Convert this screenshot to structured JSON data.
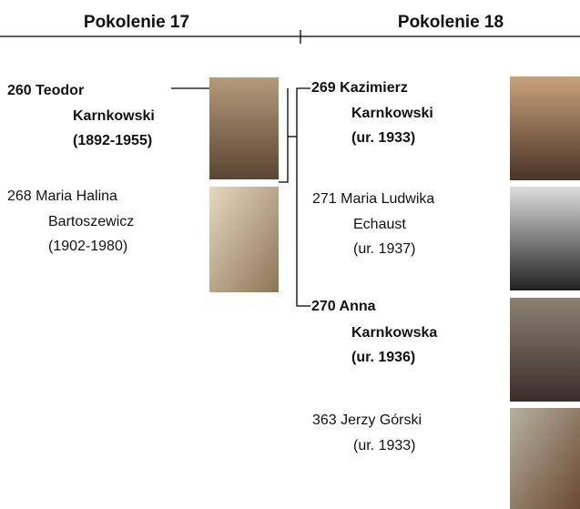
{
  "generations": [
    {
      "title": "Pokolenie 17",
      "persons": [
        {
          "lines": [
            "260 Teodor",
            "Karnkowski",
            "(1892-1955)"
          ]
        },
        {
          "lines": [
            "268 Maria Halina",
            "Bartoszewicz",
            "(1902-1980)"
          ]
        }
      ]
    },
    {
      "title": "Pokolenie 18",
      "persons": [
        {
          "lines": [
            "269 Kazimierz",
            "Karnkowski",
            "(ur. 1933)"
          ]
        },
        {
          "lines": [
            "271 Maria Ludwika",
            "Echaust",
            "(ur. 1937)"
          ]
        },
        {
          "lines": [
            "270 Anna",
            "Karnkowska",
            "(ur. 1936)"
          ]
        },
        {
          "lines": [
            "363 Jerzy Górski",
            "(ur. 1933)"
          ]
        }
      ]
    }
  ]
}
